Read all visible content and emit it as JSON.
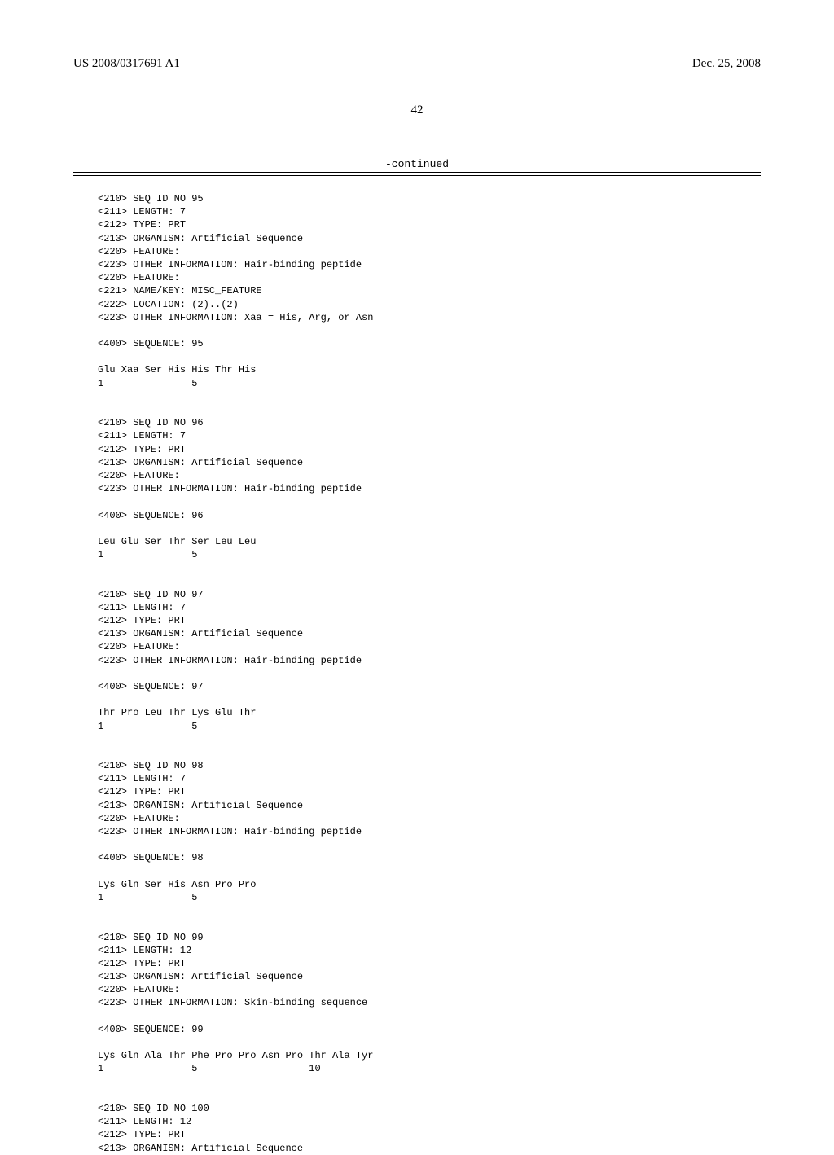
{
  "header": {
    "publication_number": "US 2008/0317691 A1",
    "publication_date": "Dec. 25, 2008"
  },
  "page_number": "42",
  "continued_label": "-continued",
  "sequences": [
    {
      "lines": [
        "<210> SEQ ID NO 95",
        "<211> LENGTH: 7",
        "<212> TYPE: PRT",
        "<213> ORGANISM: Artificial Sequence",
        "<220> FEATURE:",
        "<223> OTHER INFORMATION: Hair-binding peptide",
        "<220> FEATURE:",
        "<221> NAME/KEY: MISC_FEATURE",
        "<222> LOCATION: (2)..(2)",
        "<223> OTHER INFORMATION: Xaa = His, Arg, or Asn",
        "",
        "<400> SEQUENCE: 95",
        "",
        "Glu Xaa Ser His His Thr His",
        "1               5"
      ]
    },
    {
      "lines": [
        "<210> SEQ ID NO 96",
        "<211> LENGTH: 7",
        "<212> TYPE: PRT",
        "<213> ORGANISM: Artificial Sequence",
        "<220> FEATURE:",
        "<223> OTHER INFORMATION: Hair-binding peptide",
        "",
        "<400> SEQUENCE: 96",
        "",
        "Leu Glu Ser Thr Ser Leu Leu",
        "1               5"
      ]
    },
    {
      "lines": [
        "<210> SEQ ID NO 97",
        "<211> LENGTH: 7",
        "<212> TYPE: PRT",
        "<213> ORGANISM: Artificial Sequence",
        "<220> FEATURE:",
        "<223> OTHER INFORMATION: Hair-binding peptide",
        "",
        "<400> SEQUENCE: 97",
        "",
        "Thr Pro Leu Thr Lys Glu Thr",
        "1               5"
      ]
    },
    {
      "lines": [
        "<210> SEQ ID NO 98",
        "<211> LENGTH: 7",
        "<212> TYPE: PRT",
        "<213> ORGANISM: Artificial Sequence",
        "<220> FEATURE:",
        "<223> OTHER INFORMATION: Hair-binding peptide",
        "",
        "<400> SEQUENCE: 98",
        "",
        "Lys Gln Ser His Asn Pro Pro",
        "1               5"
      ]
    },
    {
      "lines": [
        "<210> SEQ ID NO 99",
        "<211> LENGTH: 12",
        "<212> TYPE: PRT",
        "<213> ORGANISM: Artificial Sequence",
        "<220> FEATURE:",
        "<223> OTHER INFORMATION: Skin-binding sequence",
        "",
        "<400> SEQUENCE: 99",
        "",
        "Lys Gln Ala Thr Phe Pro Pro Asn Pro Thr Ala Tyr",
        "1               5                   10"
      ]
    },
    {
      "lines": [
        "<210> SEQ ID NO 100",
        "<211> LENGTH: 12",
        "<212> TYPE: PRT",
        "<213> ORGANISM: Artificial Sequence"
      ]
    }
  ]
}
